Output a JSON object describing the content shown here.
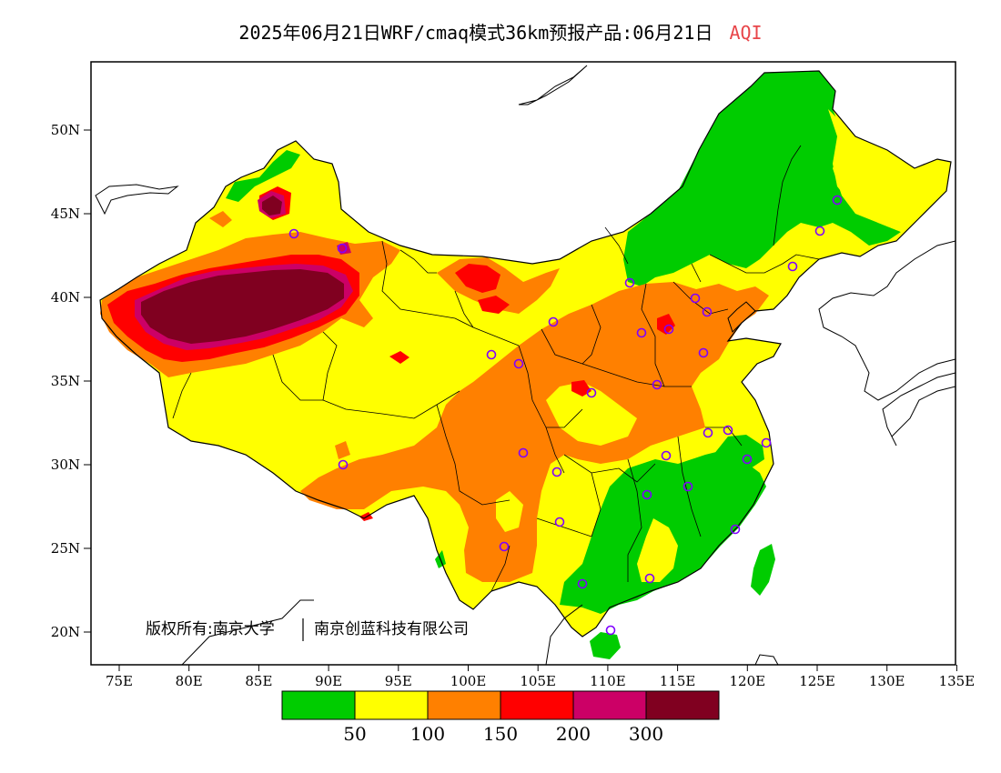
{
  "title": {
    "main": "2025年06月21日WRF/cmaq模式36km预报产品:06月21日",
    "variable": "AQI"
  },
  "axes": {
    "y_labels": [
      "50N",
      "45N",
      "40N",
      "35N",
      "30N",
      "25N",
      "20N"
    ],
    "x_labels": [
      "75E",
      "80E",
      "85E",
      "90E",
      "95E",
      "100E",
      "105E",
      "110E",
      "115E",
      "120E",
      "125E",
      "130E",
      "135E"
    ]
  },
  "copyright": {
    "left": "版权所有:南京大学",
    "right": "南京创蓝科技有限公司"
  },
  "legend": {
    "colors": [
      "#00cc00",
      "#ffff00",
      "#ff8000",
      "#ff0000",
      "#cc0066",
      "#800020"
    ],
    "labels": [
      "50",
      "100",
      "150",
      "200",
      "300"
    ]
  },
  "colors": {
    "good": "#00cc00",
    "moderate": "#ffff00",
    "unhealthy_sensitive": "#ff8000",
    "unhealthy": "#ff0000",
    "very_unhealthy": "#cc0066",
    "hazardous": "#800020",
    "site_marker": "#8000ff",
    "title_accent": "#e8464a"
  }
}
